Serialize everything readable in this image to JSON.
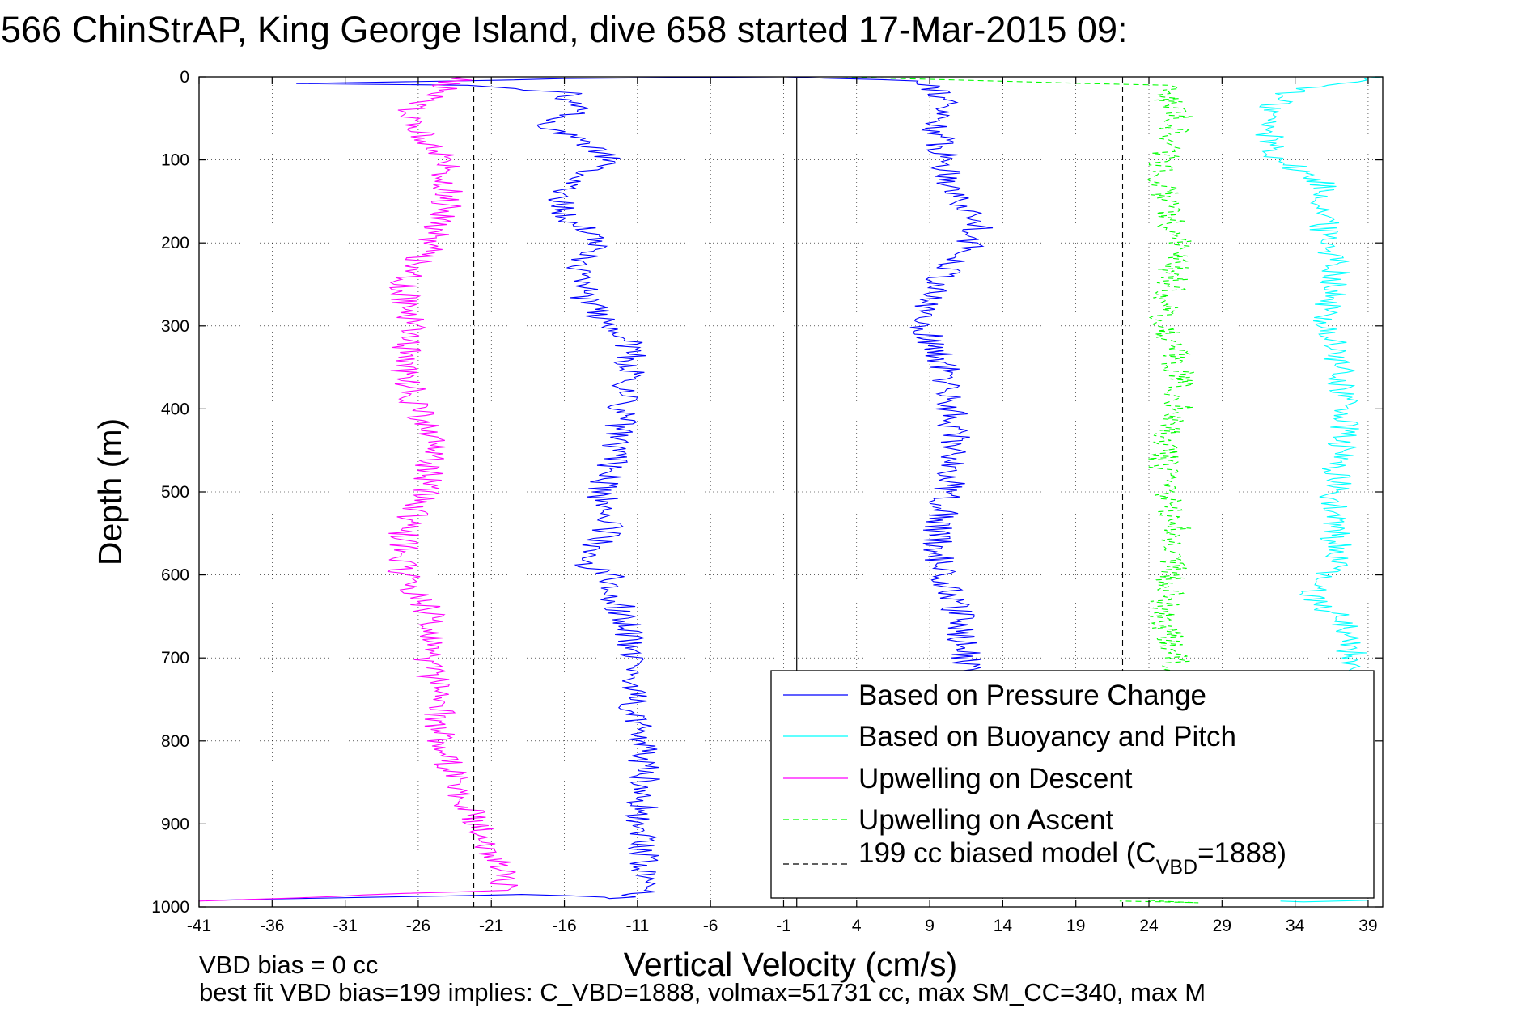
{
  "chart_data": {
    "type": "line",
    "title": "566 ChinStrAP, King George Island, dive 658 started 17-Mar-2015 09:",
    "xlabel": "Vertical Velocity (cm/s)",
    "ylabel": "Depth (m)",
    "xlim": [
      -41,
      40
    ],
    "ylim": [
      0,
      1000
    ],
    "y_reversed": true,
    "xticks": [
      -41,
      -36,
      -31,
      -26,
      -21,
      -16,
      -11,
      -6,
      -1,
      4,
      9,
      14,
      19,
      24,
      29,
      34,
      39
    ],
    "yticks": [
      0,
      100,
      200,
      300,
      400,
      500,
      600,
      700,
      800,
      900,
      1000
    ],
    "grid": true,
    "legend_position": "bottom-right",
    "series": [
      {
        "name": "Based on Pressure Change",
        "color": "#0000ff",
        "style": "solid",
        "points": [
          [
            -40,
            992
          ],
          [
            -18,
            985
          ],
          [
            -12,
            990
          ],
          [
            -10,
            980
          ],
          [
            -10.5,
            950
          ],
          [
            -10.8,
            900
          ],
          [
            -10.5,
            850
          ],
          [
            -10.7,
            800
          ],
          [
            -11.3,
            750
          ],
          [
            -11.2,
            700
          ],
          [
            -12,
            650
          ],
          [
            -13,
            600
          ],
          [
            -15,
            580
          ],
          [
            -13,
            550
          ],
          [
            -13.5,
            500
          ],
          [
            -12.5,
            450
          ],
          [
            -12,
            400
          ],
          [
            -11.5,
            350
          ],
          [
            -11.5,
            320
          ],
          [
            -13,
            300
          ],
          [
            -14.5,
            270
          ],
          [
            -15,
            240
          ],
          [
            -14,
            200
          ],
          [
            -15.5,
            170
          ],
          [
            -16.5,
            150
          ],
          [
            -14.5,
            120
          ],
          [
            -13,
            100
          ],
          [
            -15.5,
            70
          ],
          [
            -18,
            60
          ],
          [
            -15,
            40
          ],
          [
            -16,
            30
          ],
          [
            -15,
            20
          ],
          [
            -22,
            10
          ],
          [
            -34,
            8
          ],
          [
            -15,
            2
          ],
          [
            -1,
            0
          ]
        ],
        "mirror_points": [
          [
            -1,
            0
          ],
          [
            9,
            5
          ],
          [
            10,
            25
          ],
          [
            9.5,
            60
          ],
          [
            10,
            100
          ],
          [
            11,
            150
          ],
          [
            12.5,
            180
          ],
          [
            11,
            220
          ],
          [
            9,
            260
          ],
          [
            8.5,
            300
          ],
          [
            10,
            350
          ],
          [
            10.5,
            400
          ],
          [
            10.8,
            450
          ],
          [
            10.2,
            500
          ],
          [
            9.5,
            550
          ],
          [
            9.8,
            600
          ],
          [
            11,
            650
          ],
          [
            11.5,
            700
          ],
          [
            11.8,
            720
          ]
        ]
      },
      {
        "name": "Based on Buoyancy and Pitch",
        "color": "#00ffff",
        "style": "solid",
        "points": [
          [
            40,
            0
          ],
          [
            33,
            20
          ],
          [
            32,
            60
          ],
          [
            33,
            100
          ],
          [
            36,
            130
          ],
          [
            36,
            180
          ],
          [
            37,
            230
          ],
          [
            36,
            290
          ],
          [
            37,
            350
          ],
          [
            37.5,
            400
          ],
          [
            37,
            460
          ],
          [
            36.5,
            520
          ],
          [
            37,
            580
          ],
          [
            35,
            620
          ],
          [
            37.5,
            660
          ],
          [
            38,
            700
          ],
          [
            37.5,
            720
          ]
        ],
        "extra_points": [
          [
            39,
            992
          ],
          [
            35,
            994
          ],
          [
            33,
            993
          ]
        ]
      },
      {
        "name": "Upwelling on Descent",
        "color": "#ff00ff",
        "style": "solid",
        "points": [
          [
            -23,
            0
          ],
          [
            -25,
            20
          ],
          [
            -27,
            50
          ],
          [
            -25,
            80
          ],
          [
            -24,
            100
          ],
          [
            -24,
            150
          ],
          [
            -25,
            200
          ],
          [
            -27,
            250
          ],
          [
            -26.5,
            300
          ],
          [
            -27,
            350
          ],
          [
            -26,
            400
          ],
          [
            -25,
            450
          ],
          [
            -25.5,
            500
          ],
          [
            -27,
            550
          ],
          [
            -27,
            600
          ],
          [
            -25,
            650
          ],
          [
            -25.5,
            700
          ],
          [
            -24.5,
            750
          ],
          [
            -24.5,
            800
          ],
          [
            -23.5,
            850
          ],
          [
            -22,
            900
          ],
          [
            -20.5,
            950
          ],
          [
            -20,
            980
          ],
          [
            -41,
            993
          ]
        ]
      },
      {
        "name": "Upwelling on Ascent",
        "color": "#00ff00",
        "style": "dashed",
        "points": [
          [
            3,
            0
          ],
          [
            25,
            10
          ],
          [
            26,
            50
          ],
          [
            25,
            100
          ],
          [
            25,
            150
          ],
          [
            26,
            200
          ],
          [
            25.5,
            250
          ],
          [
            25,
            300
          ],
          [
            26,
            350
          ],
          [
            26,
            400
          ],
          [
            25,
            450
          ],
          [
            25,
            500
          ],
          [
            26,
            550
          ],
          [
            25.5,
            600
          ],
          [
            25,
            650
          ],
          [
            26,
            700
          ],
          [
            26,
            720
          ]
        ],
        "extra_points": [
          [
            24,
            992
          ],
          [
            27,
            995
          ],
          [
            22,
            993
          ]
        ]
      },
      {
        "name": "199 cc biased model (C",
        "sub": "VBD",
        "suffix": "=1888)",
        "color": "#000000",
        "style": "dashed",
        "x_values": [
          -22.2,
          22.2
        ]
      }
    ],
    "reference_line_x": -0.1,
    "annotations": [
      "VBD bias = 0 cc",
      "best fit VBD bias=199 implies: C_VBD=1888, volmax=51731 cc, max SM_CC=340, max M"
    ]
  }
}
